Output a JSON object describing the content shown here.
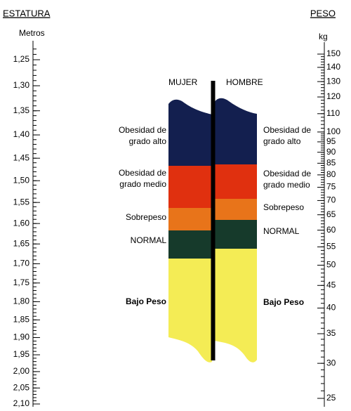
{
  "height_axis": {
    "title": "ESTATURA",
    "unit": "Metros",
    "ticks": [
      {
        "value": 1.25,
        "label": "1,25"
      },
      {
        "value": 1.3,
        "label": "1,30"
      },
      {
        "value": 1.35,
        "label": "1,35"
      },
      {
        "value": 1.4,
        "label": "1,40"
      },
      {
        "value": 1.45,
        "label": "1,45"
      },
      {
        "value": 1.5,
        "label": "1,50"
      },
      {
        "value": 1.55,
        "label": "1,55"
      },
      {
        "value": 1.6,
        "label": "1,60"
      },
      {
        "value": 1.65,
        "label": "1,65"
      },
      {
        "value": 1.7,
        "label": "1,70"
      },
      {
        "value": 1.75,
        "label": "1,75"
      },
      {
        "value": 1.8,
        "label": "1,80"
      },
      {
        "value": 1.85,
        "label": "1,85"
      },
      {
        "value": 1.9,
        "label": "1,90"
      },
      {
        "value": 1.95,
        "label": "1,95"
      },
      {
        "value": 2.0,
        "label": "2,00"
      },
      {
        "value": 2.05,
        "label": "2,05"
      },
      {
        "value": 2.1,
        "label": "2,10"
      }
    ]
  },
  "weight_axis": {
    "title": "PESO",
    "unit": "kg",
    "ticks": [
      150,
      140,
      130,
      120,
      110,
      100,
      95,
      90,
      85,
      80,
      75,
      70,
      65,
      60,
      55,
      50,
      45,
      40,
      35,
      30,
      25
    ]
  },
  "columns": {
    "woman": "MUJER",
    "man": "HOMBRE"
  },
  "woman_labels": [
    [
      "Obesidad de",
      "grado alto"
    ],
    [
      "Obesidad de",
      "grado medio"
    ],
    [
      "Sobrepeso"
    ],
    [
      "NORMAL"
    ],
    [
      "Bajo Peso"
    ]
  ],
  "man_labels": [
    [
      "Obesidad de",
      "grado alto"
    ],
    [
      "Obesidad de",
      "grado medio"
    ],
    [
      "Sobrepeso"
    ],
    [
      "NORMAL"
    ],
    [
      "Bajo Peso"
    ]
  ]
}
